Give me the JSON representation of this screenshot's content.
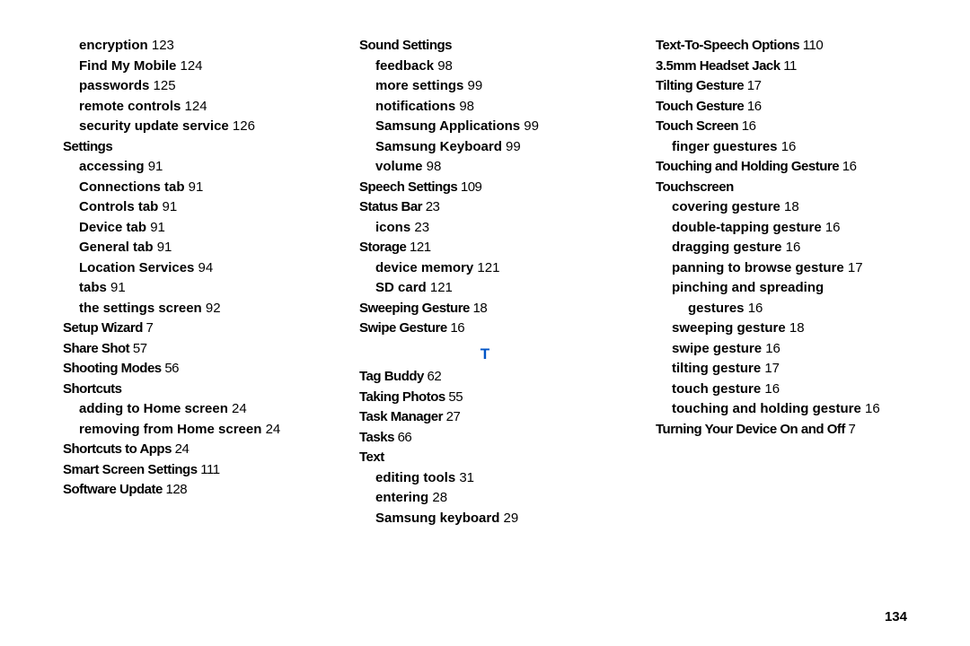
{
  "pageNumber": "134",
  "columns": [
    {
      "items": [
        {
          "type": "sub",
          "indent": 1,
          "label": "encryption",
          "page": "123"
        },
        {
          "type": "sub",
          "indent": 1,
          "label": "Find My Mobile",
          "page": "124"
        },
        {
          "type": "sub",
          "indent": 1,
          "label": "passwords",
          "page": "125"
        },
        {
          "type": "sub",
          "indent": 1,
          "label": "remote controls",
          "page": "124"
        },
        {
          "type": "sub",
          "indent": 1,
          "label": "security update service",
          "page": "126"
        },
        {
          "type": "heading",
          "indent": 0,
          "label": "Settings",
          "page": ""
        },
        {
          "type": "sub",
          "indent": 1,
          "label": "accessing",
          "page": "91"
        },
        {
          "type": "sub",
          "indent": 1,
          "label": "Connections tab",
          "page": "91"
        },
        {
          "type": "sub",
          "indent": 1,
          "label": "Controls tab",
          "page": "91"
        },
        {
          "type": "sub",
          "indent": 1,
          "label": "Device tab",
          "page": "91"
        },
        {
          "type": "sub",
          "indent": 1,
          "label": "General tab",
          "page": "91"
        },
        {
          "type": "sub",
          "indent": 1,
          "label": "Location Services",
          "page": "94"
        },
        {
          "type": "sub",
          "indent": 1,
          "label": "tabs",
          "page": "91"
        },
        {
          "type": "sub",
          "indent": 1,
          "label": "the settings screen",
          "page": "92"
        },
        {
          "type": "heading",
          "indent": 0,
          "label": "Setup Wizard",
          "page": "7"
        },
        {
          "type": "heading",
          "indent": 0,
          "label": "Share Shot",
          "page": "57"
        },
        {
          "type": "heading",
          "indent": 0,
          "label": "Shooting Modes",
          "page": "56"
        },
        {
          "type": "heading",
          "indent": 0,
          "label": "Shortcuts",
          "page": ""
        },
        {
          "type": "sub",
          "indent": 1,
          "label": "adding to Home screen",
          "page": "24"
        },
        {
          "type": "sub",
          "indent": 1,
          "label": "removing from Home screen",
          "page": "24"
        },
        {
          "type": "heading",
          "indent": 0,
          "label": "Shortcuts to Apps",
          "page": "24"
        },
        {
          "type": "heading",
          "indent": 0,
          "label": "Smart Screen Settings",
          "page": "111"
        },
        {
          "type": "heading",
          "indent": 0,
          "label": "Software Update",
          "page": "128"
        }
      ]
    },
    {
      "items": [
        {
          "type": "heading",
          "indent": 0,
          "label": "Sound Settings",
          "page": ""
        },
        {
          "type": "sub",
          "indent": 1,
          "label": "feedback",
          "page": "98"
        },
        {
          "type": "sub",
          "indent": 1,
          "label": "more settings",
          "page": "99"
        },
        {
          "type": "sub",
          "indent": 1,
          "label": "notifications",
          "page": "98"
        },
        {
          "type": "sub",
          "indent": 1,
          "label": "Samsung Applications",
          "page": "99"
        },
        {
          "type": "sub",
          "indent": 1,
          "label": "Samsung Keyboard",
          "page": "99"
        },
        {
          "type": "sub",
          "indent": 1,
          "label": "volume",
          "page": "98"
        },
        {
          "type": "heading",
          "indent": 0,
          "label": "Speech Settings",
          "page": "109"
        },
        {
          "type": "heading",
          "indent": 0,
          "label": "Status Bar",
          "page": "23"
        },
        {
          "type": "sub",
          "indent": 1,
          "label": "icons",
          "page": "23"
        },
        {
          "type": "heading",
          "indent": 0,
          "label": "Storage",
          "page": "121"
        },
        {
          "type": "sub",
          "indent": 1,
          "label": "device memory",
          "page": "121"
        },
        {
          "type": "sub",
          "indent": 1,
          "label": "SD card",
          "page": "121"
        },
        {
          "type": "heading",
          "indent": 0,
          "label": "Sweeping Gesture",
          "page": "18"
        },
        {
          "type": "heading",
          "indent": 0,
          "label": "Swipe Gesture",
          "page": "16"
        },
        {
          "type": "section",
          "label": "T"
        },
        {
          "type": "heading",
          "indent": 0,
          "label": "Tag Buddy",
          "page": "62"
        },
        {
          "type": "heading",
          "indent": 0,
          "label": "Taking Photos",
          "page": "55"
        },
        {
          "type": "heading",
          "indent": 0,
          "label": "Task Manager",
          "page": "27"
        },
        {
          "type": "heading",
          "indent": 0,
          "label": "Tasks",
          "page": "66"
        },
        {
          "type": "heading",
          "indent": 0,
          "label": "Text",
          "page": ""
        },
        {
          "type": "sub",
          "indent": 1,
          "label": "editing tools",
          "page": "31"
        },
        {
          "type": "sub",
          "indent": 1,
          "label": "entering",
          "page": "28"
        },
        {
          "type": "sub",
          "indent": 1,
          "label": "Samsung keyboard",
          "page": "29"
        }
      ]
    },
    {
      "items": [
        {
          "type": "heading",
          "indent": 0,
          "label": "Text-To-Speech Options",
          "page": "110"
        },
        {
          "type": "heading",
          "indent": 0,
          "label": "3.5mm Headset Jack",
          "page": "11"
        },
        {
          "type": "heading",
          "indent": 0,
          "label": "Tilting Gesture",
          "page": "17"
        },
        {
          "type": "heading",
          "indent": 0,
          "label": "Touch Gesture",
          "page": "16"
        },
        {
          "type": "heading",
          "indent": 0,
          "label": "Touch Screen",
          "page": "16"
        },
        {
          "type": "sub",
          "indent": 1,
          "label": "finger guestures",
          "page": "16"
        },
        {
          "type": "heading",
          "indent": 0,
          "label": "Touching and Holding Gesture",
          "page": "16"
        },
        {
          "type": "heading",
          "indent": 0,
          "label": "Touchscreen",
          "page": ""
        },
        {
          "type": "sub",
          "indent": 1,
          "label": "covering gesture",
          "page": "18"
        },
        {
          "type": "sub",
          "indent": 1,
          "label": "double-tapping gesture",
          "page": "16"
        },
        {
          "type": "sub",
          "indent": 1,
          "label": "dragging gesture",
          "page": "16"
        },
        {
          "type": "sub",
          "indent": 1,
          "label": "panning to browse gesture",
          "page": "17"
        },
        {
          "type": "sub",
          "indent": 1,
          "label": "pinching and spreading",
          "page": ""
        },
        {
          "type": "sub",
          "indent": 2,
          "label": "gestures",
          "page": "16"
        },
        {
          "type": "sub",
          "indent": 1,
          "label": "sweeping gesture",
          "page": "18"
        },
        {
          "type": "sub",
          "indent": 1,
          "label": "swipe gesture",
          "page": "16"
        },
        {
          "type": "sub",
          "indent": 1,
          "label": "tilting gesture",
          "page": "17"
        },
        {
          "type": "sub",
          "indent": 1,
          "label": "touch gesture",
          "page": "16"
        },
        {
          "type": "sub",
          "indent": 1,
          "label": "touching and holding gesture",
          "page": "16"
        },
        {
          "type": "heading",
          "indent": 0,
          "label": "Turning Your Device On and Off",
          "page": "7"
        }
      ]
    }
  ]
}
